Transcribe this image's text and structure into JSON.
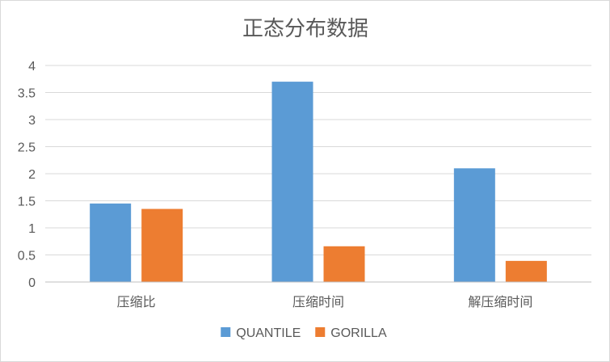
{
  "chart_data": {
    "type": "bar",
    "title": "正态分布数据",
    "categories": [
      "压缩比",
      "压缩时间",
      "解压缩时间"
    ],
    "series": [
      {
        "name": "QUANTILE",
        "color": "#5b9bd5",
        "values": [
          1.45,
          3.7,
          2.1
        ]
      },
      {
        "name": "GORILLA",
        "color": "#ed7d31",
        "values": [
          1.35,
          0.66,
          0.39
        ]
      }
    ],
    "yticks": [
      "0",
      "0.5",
      "1",
      "1.5",
      "2",
      "2.5",
      "3",
      "3.5",
      "4"
    ],
    "ylim": [
      0,
      4
    ],
    "grid": true,
    "legend": "bottom"
  }
}
